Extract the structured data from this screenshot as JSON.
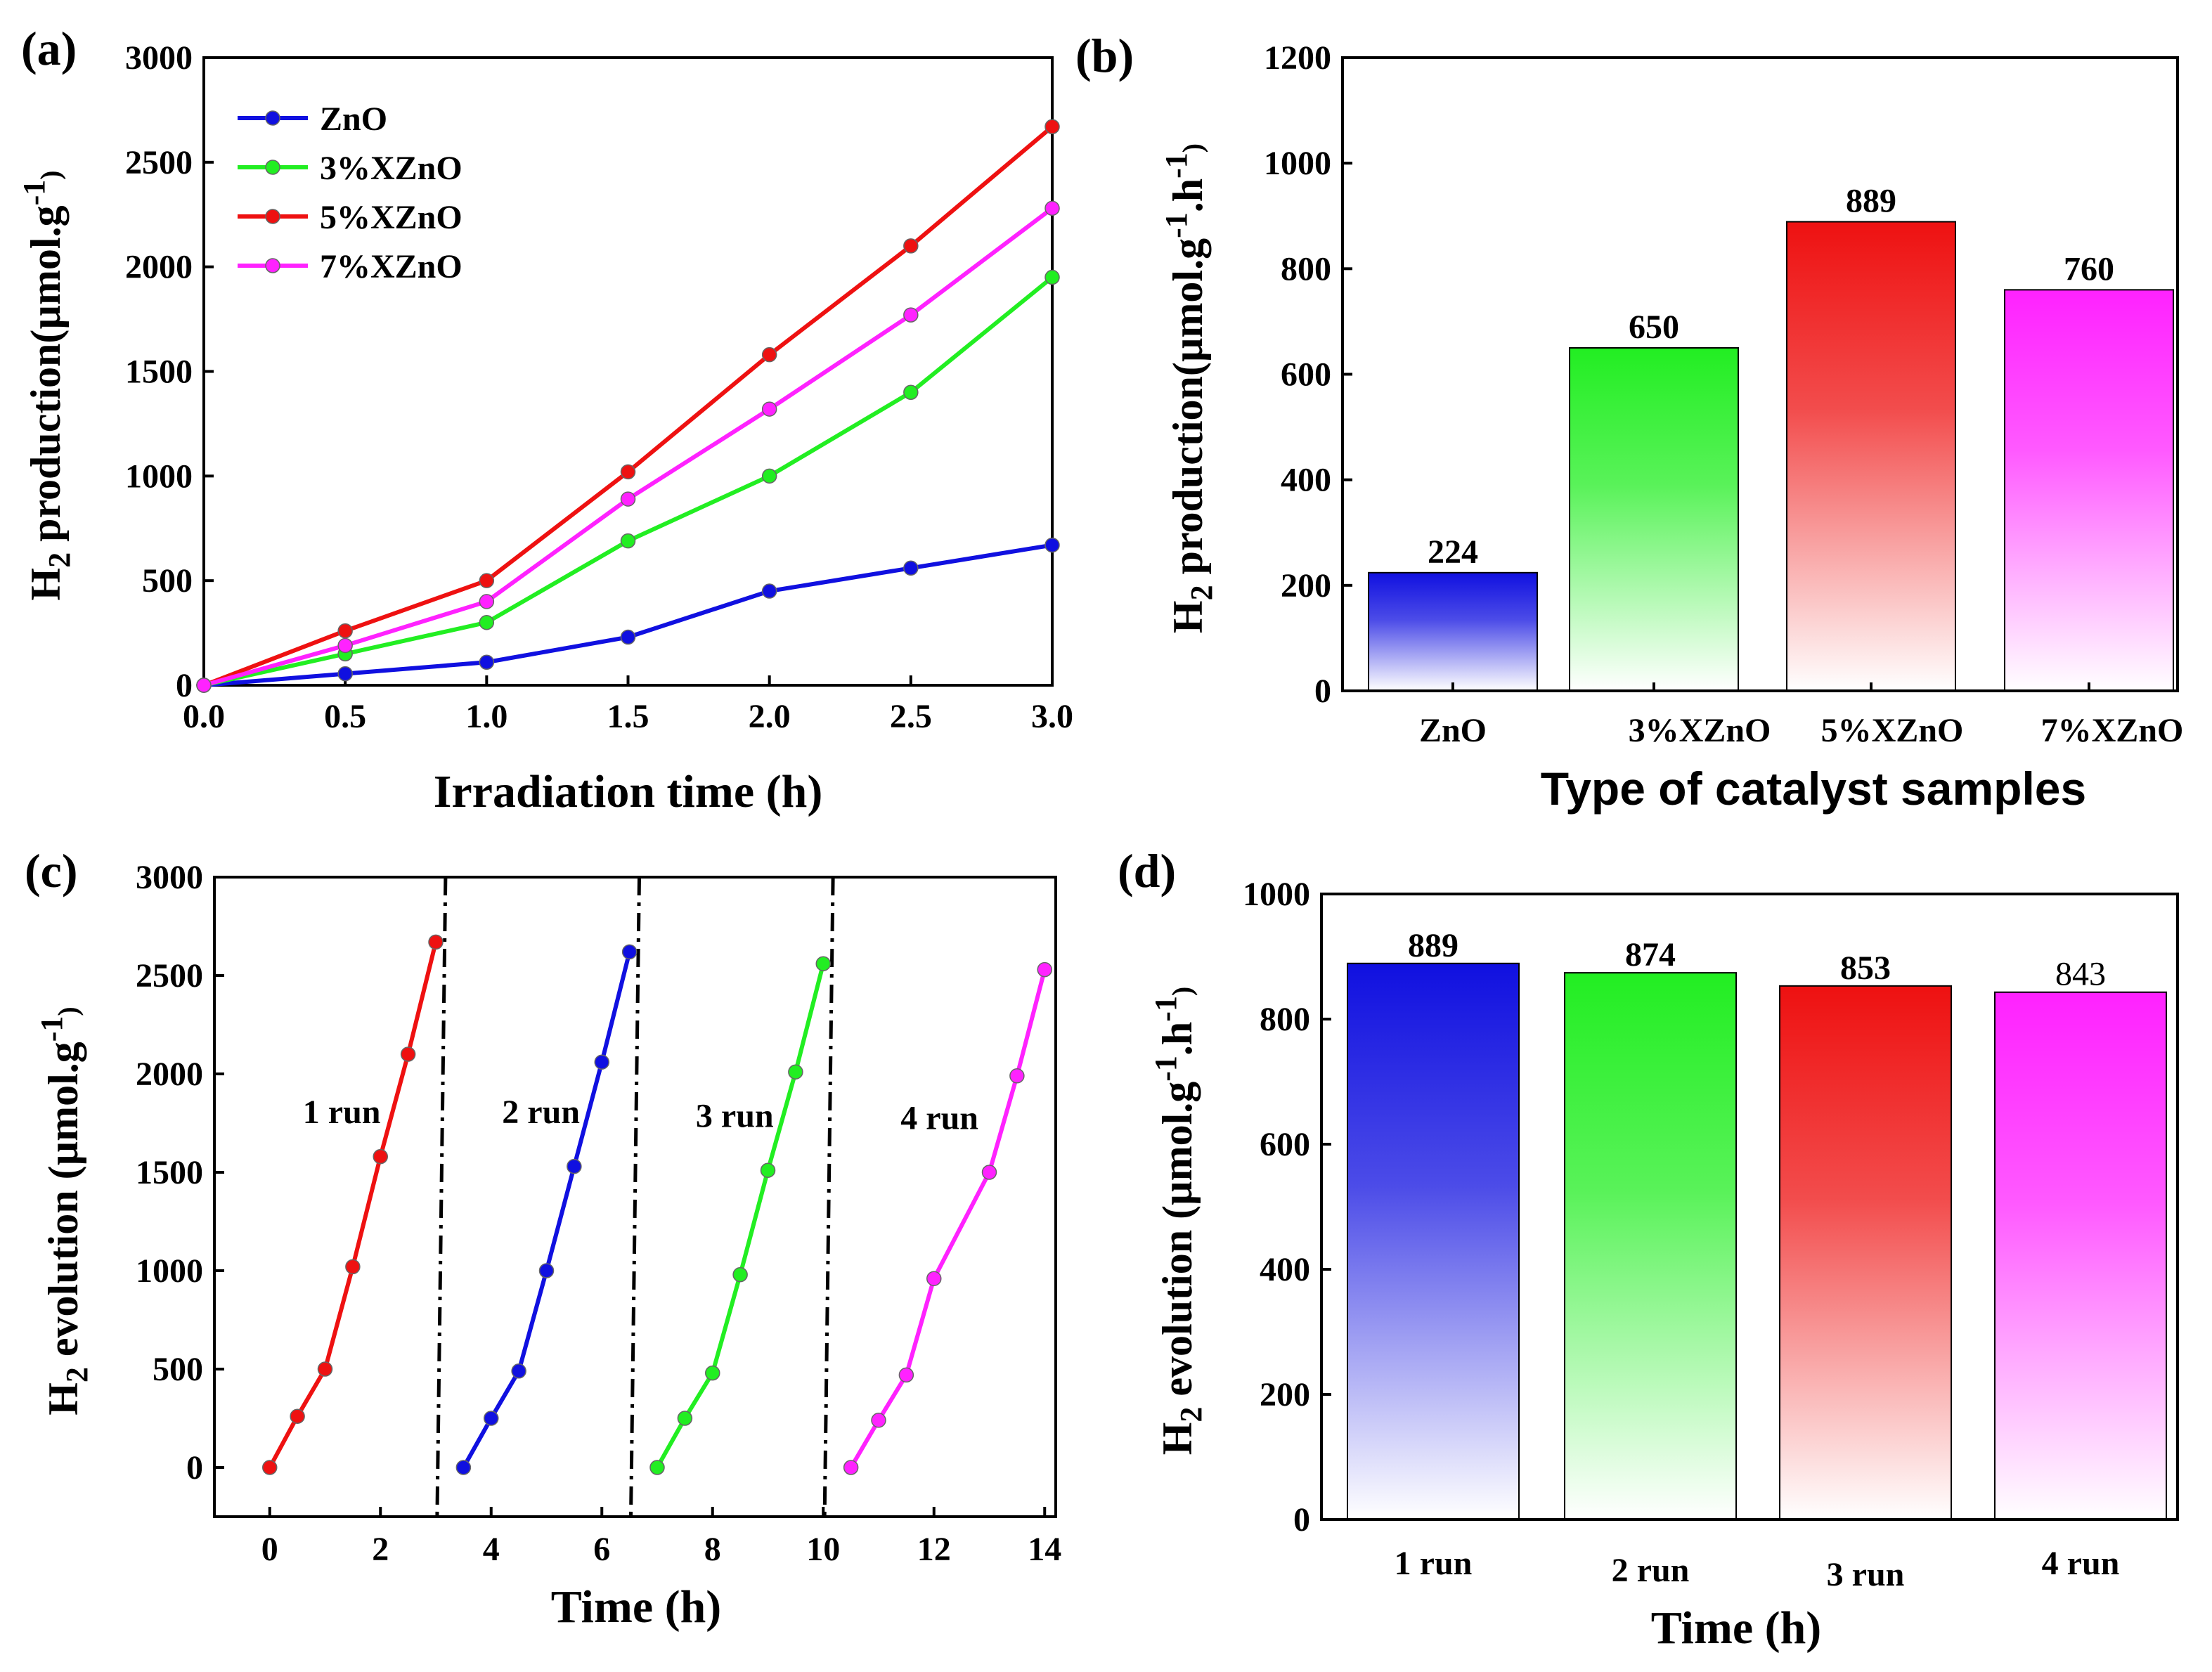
{
  "panels": {
    "a": "(a)",
    "b": "(b)",
    "c": "(c)",
    "d": "(d)"
  },
  "colors": {
    "zno": "#1010e0",
    "x3": "#22ee22",
    "x5": "#ee1111",
    "x7": "#ff22ff"
  },
  "chart_data": [
    {
      "id": "a",
      "type": "line",
      "xlabel": "Irradiation time (h)",
      "ylabel_main": "H",
      "ylabel_sub": "2",
      "ylabel_rest": " production(µmol.g",
      "ylabel_sup": "-1",
      "ylabel_close": ")",
      "xlim": [
        0,
        3.0
      ],
      "ylim": [
        0,
        3000
      ],
      "xticks": [
        "0.0",
        "0.5",
        "1.0",
        "1.5",
        "2.0",
        "2.5",
        "3.0"
      ],
      "yticks": [
        "0",
        "500",
        "1000",
        "1500",
        "2000",
        "2500",
        "3000"
      ],
      "x": [
        0,
        0.5,
        1.0,
        1.5,
        2.0,
        2.5,
        3.0
      ],
      "series": [
        {
          "name": "ZnO",
          "color": "#1010e0",
          "values": [
            0,
            55,
            110,
            230,
            450,
            560,
            670
          ]
        },
        {
          "name": "3%XZnO",
          "color": "#22ee22",
          "values": [
            0,
            150,
            300,
            690,
            1000,
            1400,
            1950
          ]
        },
        {
          "name": "5%XZnO",
          "color": "#ee1111",
          "values": [
            0,
            260,
            500,
            1020,
            1580,
            2100,
            2670
          ]
        },
        {
          "name": "7%XZnO",
          "color": "#ff22ff",
          "values": [
            0,
            190,
            400,
            890,
            1320,
            1770,
            2280
          ]
        }
      ],
      "legend_position": "top-left"
    },
    {
      "id": "b",
      "type": "bar",
      "xlabel": "Type of catalyst samples",
      "ylabel_main": "H",
      "ylabel_sub": "2",
      "ylabel_rest": " production(µmol.g",
      "ylabel_sup1": "-1",
      "ylabel_mid": ".h",
      "ylabel_sup2": "-1",
      "ylabel_close": ")",
      "ylim": [
        0,
        1200
      ],
      "yticks": [
        "0",
        "200",
        "400",
        "600",
        "800",
        "1000",
        "1200"
      ],
      "categories": [
        "ZnO",
        "3%XZnO",
        "5%XZnO",
        "7%XZnO"
      ],
      "values": [
        224,
        650,
        889,
        760
      ],
      "value_labels": [
        "224",
        "650",
        "889",
        "760"
      ],
      "colors": [
        "#1010e0",
        "#22ee22",
        "#ee1111",
        "#ff22ff"
      ]
    },
    {
      "id": "c",
      "type": "line",
      "xlabel": "Time (h)",
      "ylabel_main": "H",
      "ylabel_sub": "2",
      "ylabel_rest": "  evolution (µmol.g",
      "ylabel_sup": "-1",
      "ylabel_close": ")",
      "xlim": [
        -1,
        14.2
      ],
      "ylim": [
        -250,
        3000
      ],
      "xticks": [
        "0",
        "2",
        "4",
        "6",
        "8",
        "10",
        "12",
        "14"
      ],
      "xtick_values": [
        0,
        2,
        4,
        6,
        8,
        10,
        12,
        14
      ],
      "yticks": [
        "0",
        "500",
        "1000",
        "1500",
        "2000",
        "2500",
        "3000"
      ],
      "ytick_values": [
        0,
        500,
        1000,
        1500,
        2000,
        2500,
        3000
      ],
      "dividers": [
        3.1,
        6.6,
        10.1
      ],
      "run_labels": [
        "1 run",
        "2 run",
        "3 run",
        "4 run"
      ],
      "run_label_pos": [
        [
          1.3,
          1750
        ],
        [
          4.9,
          1750
        ],
        [
          8.4,
          1730
        ],
        [
          12.1,
          1720
        ]
      ],
      "series": [
        {
          "name": "1 run",
          "color": "#ee1111",
          "x": [
            0,
            0.5,
            1.0,
            1.5,
            2.0,
            2.5,
            3.0
          ],
          "values": [
            0,
            260,
            500,
            1020,
            1580,
            2100,
            2670
          ]
        },
        {
          "name": "2 run",
          "color": "#1010e0",
          "x": [
            3.5,
            4.0,
            4.5,
            5.0,
            5.5,
            6.0,
            6.5
          ],
          "values": [
            0,
            250,
            490,
            1000,
            1530,
            2060,
            2620
          ]
        },
        {
          "name": "3 run",
          "color": "#22ee22",
          "x": [
            7.0,
            7.5,
            8.0,
            8.5,
            9.0,
            9.5,
            10.0
          ],
          "values": [
            0,
            250,
            480,
            980,
            1510,
            2010,
            2560
          ]
        },
        {
          "name": "4 run",
          "color": "#ff22ff",
          "x": [
            10.5,
            11.0,
            11.5,
            12.0,
            13.0,
            13.5,
            14.0
          ],
          "values": [
            0,
            240,
            470,
            960,
            1500,
            1990,
            2530
          ]
        }
      ]
    },
    {
      "id": "d",
      "type": "bar",
      "xlabel": "Time (h)",
      "ylabel_main": "H",
      "ylabel_sub": "2",
      "ylabel_rest": "  evolution (µmol.g",
      "ylabel_sup1": "-1",
      "ylabel_mid": ".h",
      "ylabel_sup2": "-1",
      "ylabel_close": ")",
      "ylim": [
        0,
        1000
      ],
      "yticks": [
        "0",
        "200",
        "400",
        "600",
        "800",
        "1000"
      ],
      "categories": [
        "1 run",
        "2 run",
        "3 run",
        "4 run"
      ],
      "values": [
        889,
        874,
        853,
        843
      ],
      "value_labels": [
        "889",
        "874",
        "853",
        "843"
      ],
      "colors": [
        "#1010e0",
        "#22ee22",
        "#ee1111",
        "#ff22ff"
      ]
    }
  ]
}
